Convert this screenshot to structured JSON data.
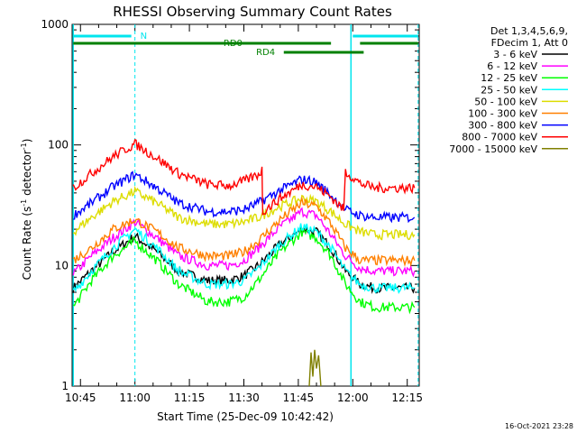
{
  "chart_data": {
    "type": "line",
    "title": "RHESSI Observing Summary Count Rates",
    "xlabel": "Start Time (25-Dec-09 10:42:42)",
    "ylabel": "Count Rate (s",
    "ylabel_sup1": "-1",
    "ylabel_mid": " detector",
    "ylabel_sup2": "-1",
    "ylabel_end": ")",
    "y_scale": "log",
    "ylim": [
      1,
      1000
    ],
    "xlim_minutes": [
      -17.3,
      78.3
    ],
    "x_ticks": [
      {
        "label": "10:45",
        "minute": -15
      },
      {
        "label": "11:00",
        "minute": 0
      },
      {
        "label": "11:15",
        "minute": 15
      },
      {
        "label": "11:30",
        "minute": 30
      },
      {
        "label": "11:45",
        "minute": 45
      },
      {
        "label": "12:00",
        "minute": 60
      },
      {
        "label": "12:15",
        "minute": 75
      }
    ],
    "y_ticks": [
      {
        "label": "1",
        "value": 1
      },
      {
        "label": "10",
        "value": 10
      },
      {
        "label": "100",
        "value": 100
      },
      {
        "label": "1000",
        "value": 1000
      }
    ],
    "legend": {
      "placement": "right",
      "header": [
        "Det 1,3,4,5,6,9,",
        "FDecim 1, Att 0"
      ]
    },
    "series": [
      {
        "name": "3 - 6 keV",
        "color": "#000000",
        "points": [
          [
            -17,
            6.5
          ],
          [
            -12,
            9
          ],
          [
            -6,
            13
          ],
          [
            0,
            17.5
          ],
          [
            6,
            13
          ],
          [
            12,
            9
          ],
          [
            20,
            7.5
          ],
          [
            26,
            7.5
          ],
          [
            30,
            8.2
          ],
          [
            34,
            10
          ],
          [
            40,
            15
          ],
          [
            46,
            20
          ],
          [
            50,
            19
          ],
          [
            54,
            14
          ],
          [
            58,
            9
          ],
          [
            62,
            7
          ],
          [
            66,
            6.5
          ],
          [
            72,
            6.5
          ],
          [
            77,
            6.5
          ]
        ]
      },
      {
        "name": "6 - 12 keV",
        "color": "#ff00ff",
        "points": [
          [
            -17,
            8.5
          ],
          [
            -12,
            12
          ],
          [
            -6,
            17
          ],
          [
            0,
            23
          ],
          [
            6,
            17
          ],
          [
            12,
            12
          ],
          [
            20,
            10
          ],
          [
            26,
            10
          ],
          [
            30,
            11
          ],
          [
            34,
            14
          ],
          [
            40,
            21
          ],
          [
            46,
            28
          ],
          [
            50,
            26
          ],
          [
            54,
            18
          ],
          [
            58,
            12
          ],
          [
            62,
            9.5
          ],
          [
            66,
            9
          ],
          [
            72,
            9
          ],
          [
            77,
            9
          ]
        ]
      },
      {
        "name": "12 - 25 keV",
        "color": "#00ff00",
        "points": [
          [
            -17,
            4.5
          ],
          [
            -12,
            7.5
          ],
          [
            -6,
            12
          ],
          [
            0,
            16
          ],
          [
            6,
            11
          ],
          [
            12,
            7
          ],
          [
            20,
            5
          ],
          [
            26,
            5
          ],
          [
            30,
            5.5
          ],
          [
            34,
            7.5
          ],
          [
            40,
            13
          ],
          [
            46,
            19
          ],
          [
            50,
            17
          ],
          [
            54,
            12
          ],
          [
            58,
            7
          ],
          [
            62,
            5
          ],
          [
            66,
            4.5
          ],
          [
            72,
            4.5
          ],
          [
            77,
            4.5
          ]
        ]
      },
      {
        "name": "25 - 50 keV",
        "color": "#00ffff",
        "points": [
          [
            -17,
            6
          ],
          [
            -12,
            9
          ],
          [
            -6,
            14
          ],
          [
            0,
            20
          ],
          [
            6,
            14
          ],
          [
            12,
            9
          ],
          [
            20,
            7
          ],
          [
            26,
            7
          ],
          [
            30,
            7.5
          ],
          [
            34,
            9.5
          ],
          [
            40,
            15
          ],
          [
            46,
            21
          ],
          [
            50,
            19
          ],
          [
            54,
            14
          ],
          [
            58,
            9
          ],
          [
            62,
            7
          ],
          [
            66,
            6.5
          ],
          [
            72,
            6.5
          ],
          [
            77,
            6.5
          ]
        ]
      },
      {
        "name": "50 - 100 keV",
        "color": "#dddd00",
        "points": [
          [
            -17,
            19
          ],
          [
            -12,
            25
          ],
          [
            -6,
            34
          ],
          [
            0,
            41
          ],
          [
            6,
            33
          ],
          [
            12,
            25
          ],
          [
            20,
            22
          ],
          [
            26,
            22
          ],
          [
            30,
            23
          ],
          [
            34,
            25
          ],
          [
            40,
            31
          ],
          [
            46,
            36
          ],
          [
            50,
            34
          ],
          [
            54,
            28
          ],
          [
            58,
            22
          ],
          [
            62,
            19
          ],
          [
            66,
            18
          ],
          [
            72,
            18
          ],
          [
            77,
            18
          ]
        ]
      },
      {
        "name": "100 - 300 keV",
        "color": "#ff8000",
        "points": [
          [
            -17,
            11
          ],
          [
            -12,
            14
          ],
          [
            -6,
            20
          ],
          [
            0,
            24
          ],
          [
            6,
            19
          ],
          [
            12,
            14
          ],
          [
            20,
            12
          ],
          [
            26,
            12
          ],
          [
            30,
            13
          ],
          [
            34,
            16
          ],
          [
            40,
            24
          ],
          [
            46,
            33
          ],
          [
            50,
            31
          ],
          [
            54,
            22
          ],
          [
            58,
            14
          ],
          [
            62,
            11
          ],
          [
            66,
            11
          ],
          [
            72,
            11
          ],
          [
            77,
            11
          ]
        ]
      },
      {
        "name": "300 - 800 keV",
        "color": "#0000ff",
        "points": [
          [
            -17,
            26
          ],
          [
            -12,
            33
          ],
          [
            -6,
            45
          ],
          [
            0,
            57
          ],
          [
            6,
            44
          ],
          [
            12,
            33
          ],
          [
            20,
            28
          ],
          [
            26,
            28
          ],
          [
            30,
            29
          ],
          [
            34,
            33
          ],
          [
            40,
            42
          ],
          [
            46,
            52
          ],
          [
            50,
            49
          ],
          [
            54,
            38
          ],
          [
            58,
            29
          ],
          [
            62,
            26
          ],
          [
            66,
            25
          ],
          [
            72,
            25
          ],
          [
            77,
            25
          ]
        ]
      },
      {
        "name": "800 - 7000 keV",
        "color": "#ff0000",
        "points": [
          [
            -17,
            44
          ],
          [
            -12,
            58
          ],
          [
            -6,
            80
          ],
          [
            0,
            102
          ],
          [
            6,
            78
          ],
          [
            12,
            58
          ],
          [
            20,
            47
          ],
          [
            26,
            46
          ],
          [
            30,
            50
          ],
          [
            34,
            57
          ],
          [
            35,
            62
          ],
          [
            35.2,
            28
          ],
          [
            40,
            36
          ],
          [
            46,
            47
          ],
          [
            50,
            45
          ],
          [
            54,
            37
          ],
          [
            57.5,
            29
          ],
          [
            58,
            60
          ],
          [
            62,
            48
          ],
          [
            66,
            44
          ],
          [
            72,
            44
          ],
          [
            77,
            44
          ]
        ]
      },
      {
        "name": "7000 - 15000 keV",
        "color": "#808000",
        "points": [
          [
            48,
            1
          ],
          [
            48.5,
            1.9
          ],
          [
            49,
            1.2
          ],
          [
            49.5,
            2
          ],
          [
            50,
            1.4
          ],
          [
            50.6,
            1.8
          ],
          [
            51.2,
            1
          ]
        ]
      }
    ],
    "annotations": {
      "saa_bar_left_label": "N",
      "rd0_label": "RD0",
      "rd4_label": "RD4",
      "saa_minutes": [
        [
          -17,
          -1
        ],
        [
          60,
          78
        ]
      ],
      "rd0_minutes": [
        [
          -17,
          54
        ],
        [
          62,
          78
        ]
      ],
      "rd4_minutes": [
        [
          41,
          63
        ]
      ],
      "night_lines_minutes": [
        0,
        78
      ],
      "solid_day_line_minutes": [
        -17,
        59.5
      ]
    }
  },
  "timestamp": "16-Oct-2021 23:28"
}
